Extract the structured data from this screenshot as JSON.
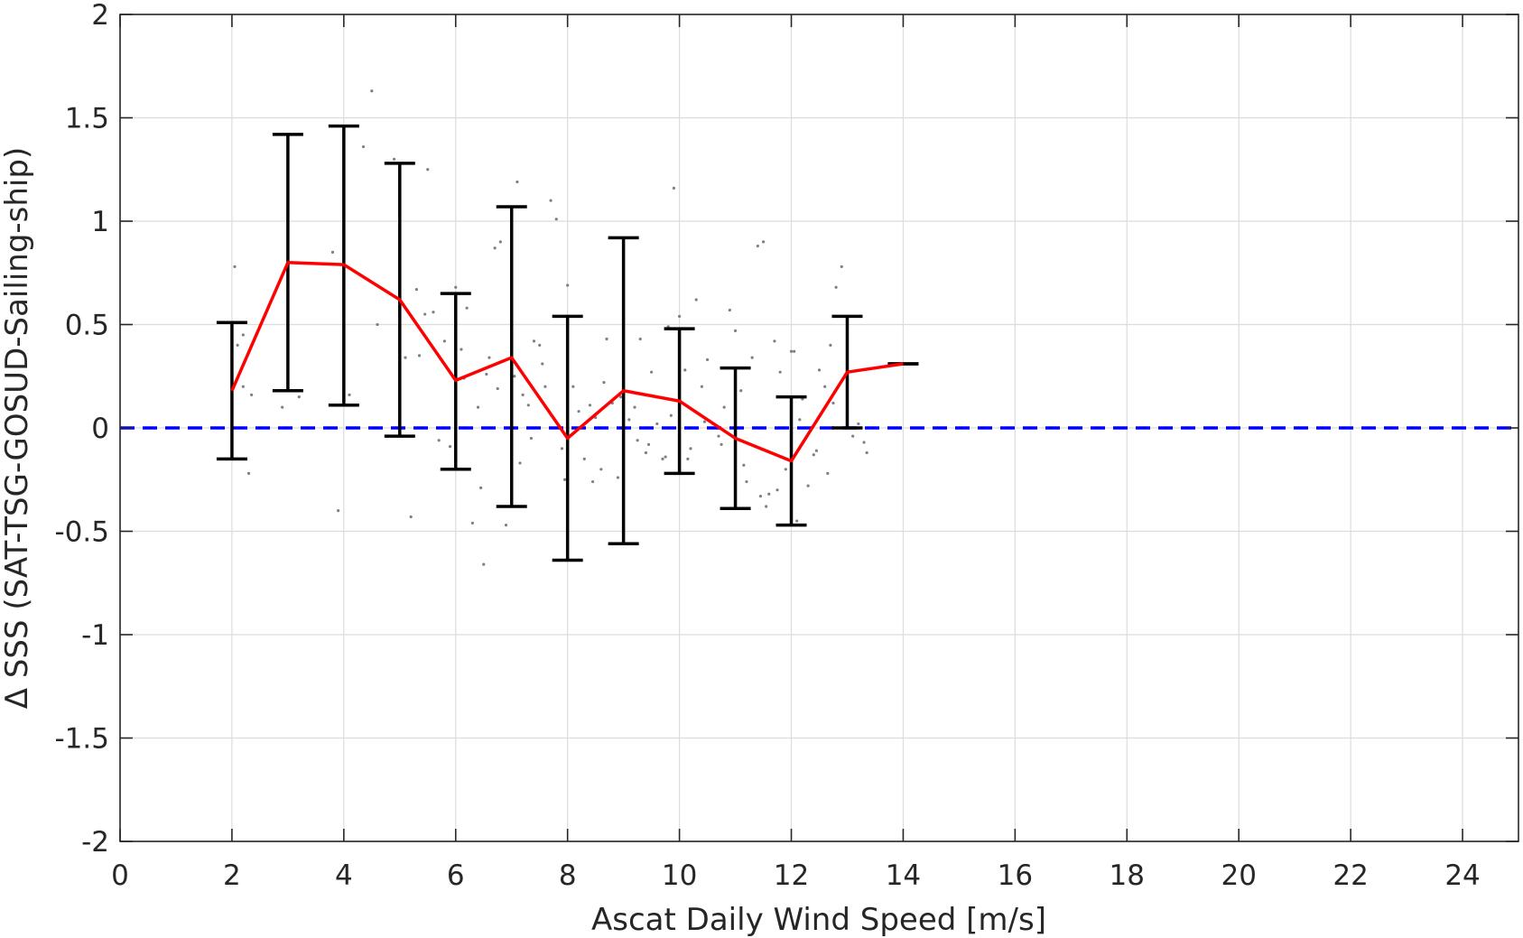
{
  "chart_data": {
    "type": "line",
    "xlabel": "Ascat Daily Wind Speed [m/s]",
    "ylabel": "Δ SSS (SAT-TSG-GOSUD-Sailing-ship)",
    "xlim": [
      0,
      25
    ],
    "ylim": [
      -2,
      2
    ],
    "x_ticks": [
      0,
      2,
      4,
      6,
      8,
      10,
      12,
      14,
      16,
      18,
      20,
      22,
      24
    ],
    "y_ticks": [
      -2,
      -1.5,
      -1,
      -0.5,
      0,
      0.5,
      1,
      1.5,
      2
    ],
    "x_tick_labels": [
      "0",
      "2",
      "4",
      "6",
      "8",
      "10",
      "12",
      "14",
      "16",
      "18",
      "20",
      "22",
      "24"
    ],
    "y_tick_labels": [
      "-2",
      "-1.5",
      "-1",
      "-0.5",
      "0",
      "0.5",
      "1",
      "1.5",
      "2"
    ],
    "grid": true,
    "colors": {
      "mean_line": "#ff0000",
      "error_bars": "#000000",
      "zero_line": "#0000ff",
      "scatter": "#808080",
      "grid": "#dcdcdc",
      "axes": "#262626"
    },
    "mean_series": {
      "x": [
        2,
        3,
        4,
        5,
        6,
        7,
        8,
        9,
        10,
        11,
        12,
        13,
        14
      ],
      "y": [
        0.18,
        0.8,
        0.79,
        0.62,
        0.23,
        0.34,
        -0.05,
        0.18,
        0.13,
        -0.05,
        -0.16,
        0.27,
        0.31
      ]
    },
    "error_bars": {
      "x": [
        2,
        3,
        4,
        5,
        6,
        7,
        8,
        9,
        10,
        11,
        12,
        13,
        14
      ],
      "lower": [
        -0.15,
        0.18,
        0.11,
        -0.04,
        -0.2,
        -0.38,
        -0.64,
        -0.56,
        -0.22,
        -0.39,
        -0.47,
        0.0,
        0.31
      ],
      "upper": [
        0.51,
        1.42,
        1.46,
        1.28,
        0.65,
        1.07,
        0.54,
        0.92,
        0.48,
        0.29,
        0.15,
        0.54,
        0.31
      ]
    },
    "zero_line": 0,
    "scatter": {
      "x": [
        2.05,
        2.1,
        2.2,
        2.35,
        2.3,
        2.2,
        2.9,
        3.2,
        3.8,
        3.9,
        4.1,
        4.35,
        4.5,
        4.6,
        4.9,
        5.0,
        5.1,
        5.2,
        5.3,
        5.5,
        5.6,
        5.7,
        5.8,
        5.9,
        6.0,
        6.1,
        6.2,
        6.3,
        6.4,
        6.5,
        6.6,
        6.7,
        6.8,
        6.9,
        7.0,
        7.05,
        7.1,
        7.2,
        7.3,
        7.4,
        7.5,
        7.6,
        7.7,
        7.8,
        7.9,
        8.0,
        8.1,
        8.2,
        8.3,
        8.4,
        8.5,
        8.6,
        8.7,
        8.8,
        8.9,
        9.0,
        9.1,
        9.2,
        9.3,
        9.4,
        9.5,
        9.6,
        9.7,
        9.8,
        9.9,
        10.0,
        10.1,
        10.2,
        10.3,
        10.4,
        10.5,
        10.6,
        10.7,
        10.8,
        10.9,
        11.0,
        11.1,
        11.2,
        11.3,
        11.4,
        11.5,
        11.6,
        11.7,
        11.8,
        11.9,
        12.0,
        12.1,
        12.2,
        12.3,
        12.4,
        12.5,
        12.6,
        12.7,
        12.8,
        12.9,
        13.0,
        13.1,
        13.2,
        13.3,
        13.35,
        6.55,
        6.75,
        7.15,
        7.55,
        8.45,
        8.65,
        9.25,
        9.45,
        9.85,
        10.15,
        10.75,
        11.15,
        11.45,
        11.75,
        12.05,
        12.45,
        12.75,
        6.15,
        6.45,
        5.45,
        5.35,
        7.35,
        7.95,
        8.95,
        9.75,
        10.45,
        11.55,
        12.15,
        12.65
      ],
      "y": [
        0.78,
        0.4,
        0.2,
        0.16,
        -0.22,
        0.45,
        0.1,
        0.15,
        0.85,
        -0.4,
        0.16,
        1.36,
        1.63,
        0.5,
        1.3,
        0.88,
        0.34,
        -0.43,
        0.67,
        1.25,
        0.56,
        -0.06,
        0.42,
        -0.09,
        0.68,
        0.38,
        0.58,
        -0.46,
        0.1,
        -0.66,
        0.34,
        0.87,
        0.9,
        -0.47,
        0.46,
        0.25,
        1.19,
        0.16,
        0.11,
        0.42,
        0.4,
        0.2,
        1.1,
        1.01,
        -0.1,
        0.69,
        0.2,
        0.08,
        -0.15,
        0.11,
        0.05,
        -0.2,
        0.43,
        0.12,
        -0.24,
        0.15,
        0.04,
        0.1,
        0.43,
        -0.12,
        0.27,
        0.02,
        -0.15,
        0.49,
        1.16,
        0.54,
        0.28,
        -0.1,
        0.62,
        0.2,
        0.33,
        0.02,
        -0.04,
        0.1,
        0.57,
        0.47,
        0.18,
        -0.26,
        0.34,
        0.88,
        0.9,
        -0.32,
        0.42,
        0.27,
        -0.2,
        0.37,
        -0.45,
        0.14,
        -0.28,
        -0.13,
        0.28,
        0.2,
        0.4,
        0.68,
        0.78,
        0.05,
        -0.04,
        0.02,
        -0.07,
        -0.12,
        0.26,
        0.19,
        -0.17,
        0.31,
        -0.26,
        0.22,
        -0.06,
        -0.08,
        0.06,
        -0.15,
        -0.08,
        -0.18,
        -0.33,
        -0.3,
        0.37,
        -0.11,
        0.12,
        0.24,
        -0.29,
        0.55,
        0.35,
        -0.05,
        -0.25,
        0.15,
        -0.14,
        0.03,
        -0.38,
        0.04,
        -0.22
      ]
    }
  }
}
